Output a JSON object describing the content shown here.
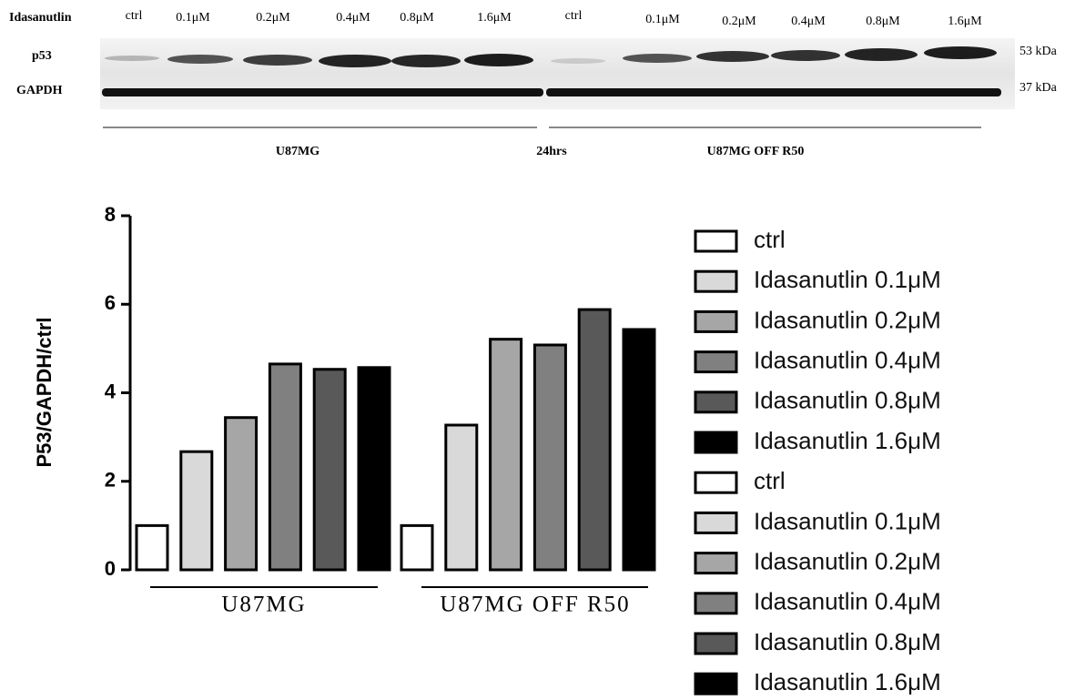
{
  "blot": {
    "treatment_label": "Idasanutlin",
    "lanes": [
      "ctrl",
      "0.1μM",
      "0.2μM",
      "0.4μM",
      "0.8μM",
      "1.6μM",
      "ctrl",
      "0.1μM",
      "0.2μM",
      "0.4μM",
      "0.8μM",
      "1.6μM"
    ],
    "bands": [
      "p53",
      "GAPDH"
    ],
    "sizes": [
      "53 kDa",
      "37 kDa"
    ],
    "groups": [
      "U87MG",
      "24hrs",
      "U87MG OFF R50"
    ]
  },
  "chart_data": {
    "type": "bar",
    "y_label": "P53/GAPDH/ctrl",
    "categories": [
      "U87MG",
      "U87MG OFF R50"
    ],
    "ylim": [
      0,
      8
    ],
    "yticks": [
      0,
      2,
      4,
      6,
      8
    ],
    "series": [
      {
        "name": "ctrl",
        "color": "#ffffff",
        "values": [
          1,
          null
        ]
      },
      {
        "name": "Idasanutlin 0.1μM",
        "color": "#d9d9d9",
        "values": [
          2.67,
          null
        ]
      },
      {
        "name": "Idasanutlin 0.2μM",
        "color": "#a6a6a6",
        "values": [
          3.44,
          null
        ]
      },
      {
        "name": "Idasanutlin 0.4μM",
        "color": "#808080",
        "values": [
          4.65,
          null
        ]
      },
      {
        "name": "Idasanutlin 0.8μM",
        "color": "#595959",
        "values": [
          4.53,
          null
        ]
      },
      {
        "name": "Idasanutlin 1.6μM",
        "color": "#000000",
        "values": [
          4.57,
          null
        ]
      },
      {
        "name": "ctrl",
        "color": "#ffffff",
        "values": [
          null,
          1
        ]
      },
      {
        "name": "Idasanutlin 0.1μM",
        "color": "#d9d9d9",
        "values": [
          null,
          3.27
        ]
      },
      {
        "name": "Idasanutlin 0.2μM",
        "color": "#a6a6a6",
        "values": [
          null,
          5.21
        ]
      },
      {
        "name": "Idasanutlin 0.4μM",
        "color": "#808080",
        "values": [
          null,
          5.08
        ]
      },
      {
        "name": "Idasanutlin 0.8μM",
        "color": "#595959",
        "values": [
          null,
          5.88
        ]
      },
      {
        "name": "Idasanutlin 1.6μM",
        "color": "#000000",
        "values": [
          null,
          5.43
        ]
      }
    ]
  }
}
